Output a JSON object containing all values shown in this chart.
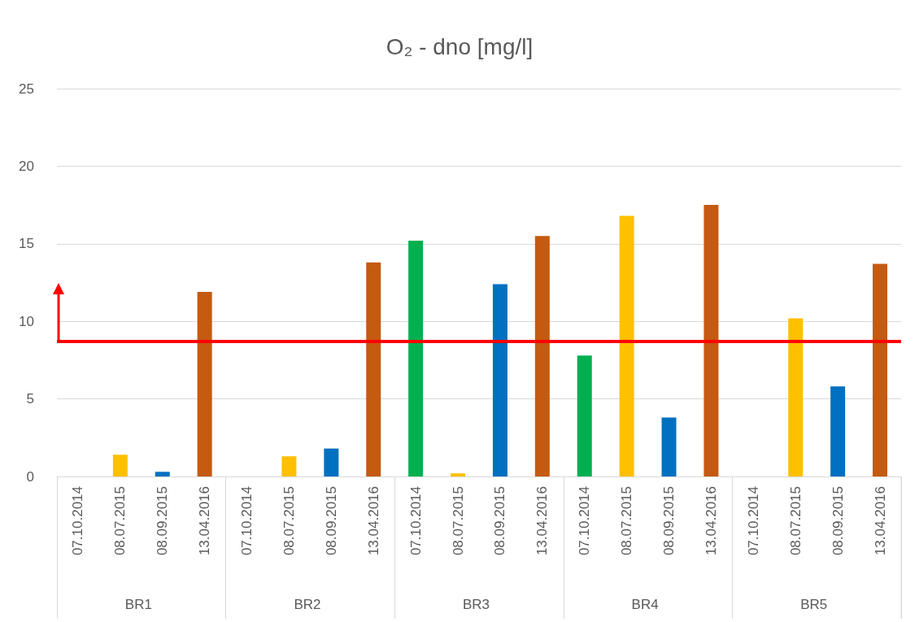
{
  "chart_data": {
    "type": "bar",
    "title": "O₂ - dno [mg/l]",
    "categories": [
      "07.10.2014",
      "08.07.2015",
      "08.09.2015",
      "13.04.2016",
      "07.10.2014",
      "08.07.2015",
      "08.09.2015",
      "13.04.2016",
      "07.10.2014",
      "08.07.2015",
      "08.09.2015",
      "13.04.2016",
      "07.10.2014",
      "08.07.2015",
      "08.09.2015",
      "13.04.2016",
      "07.10.2014",
      "08.07.2015",
      "08.09.2015",
      "13.04.2016"
    ],
    "values": [
      null,
      1.4,
      0.3,
      11.9,
      null,
      1.3,
      1.8,
      13.8,
      15.2,
      0.2,
      12.4,
      15.5,
      7.8,
      16.8,
      3.8,
      17.5,
      null,
      10.2,
      5.8,
      13.7
    ],
    "colors": [
      "#00b050",
      "#ffc000",
      "#0070c0",
      "#c55a11",
      "#00b050",
      "#ffc000",
      "#0070c0",
      "#c55a11",
      "#00b050",
      "#ffc000",
      "#0070c0",
      "#c55a11",
      "#00b050",
      "#ffc000",
      "#0070c0",
      "#c55a11",
      "#00b050",
      "#ffc000",
      "#0070c0",
      "#c55a11"
    ],
    "annotations": [
      "BR1",
      "BR2",
      "BR3",
      "BR4",
      "BR5"
    ],
    "ylim": [
      0,
      25
    ],
    "yticks": [
      0,
      5,
      10,
      15,
      20,
      25
    ],
    "grid": "y",
    "ref_lines": [
      {
        "axis": "y",
        "value": 8.7,
        "color": "#ff0000"
      }
    ]
  }
}
